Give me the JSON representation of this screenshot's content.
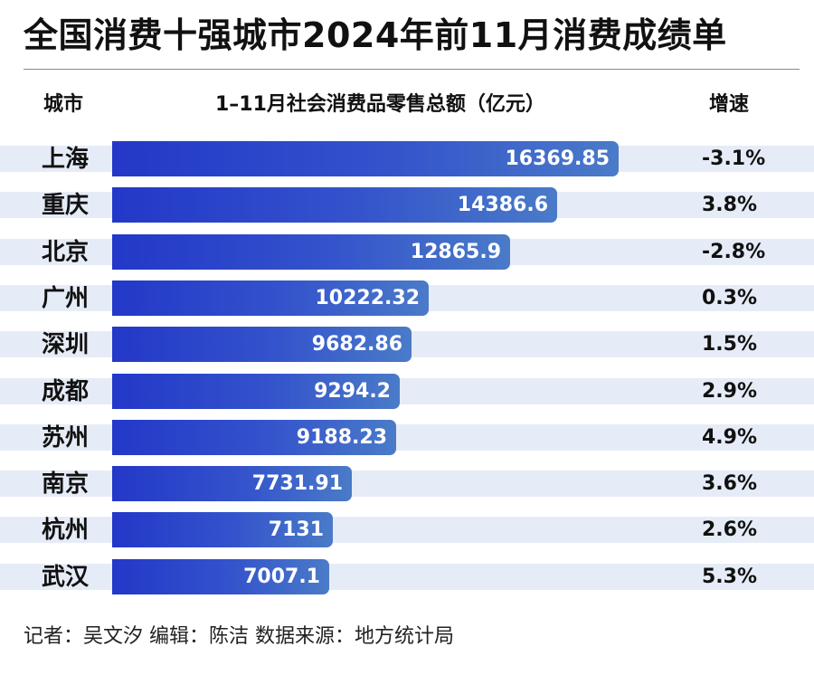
{
  "title": "全国消费十强城市2024年前11月消费成绩单",
  "footer": "记者：吴文汐  编辑：陈洁  数据来源：地方统计局",
  "chart_data": {
    "type": "bar",
    "orientation": "horizontal",
    "headers": {
      "city": "城市",
      "value": "1–11月社会消费品零售总额（亿元）",
      "growth": "增速"
    },
    "categories": [
      "上海",
      "重庆",
      "北京",
      "广州",
      "深圳",
      "成都",
      "苏州",
      "南京",
      "杭州",
      "武汉"
    ],
    "values": [
      16369.85,
      14386.6,
      12865.9,
      10222.32,
      9682.86,
      9294.2,
      9188.23,
      7731.91,
      7131,
      7007.1
    ],
    "value_labels": [
      "16369.85",
      "14386.6",
      "12865.9",
      "10222.32",
      "9682.86",
      "9294.2",
      "9188.23",
      "7731.91",
      "7131",
      "7007.1"
    ],
    "growth": [
      "-3.1%",
      "3.8%",
      "-2.8%",
      "0.3%",
      "1.5%",
      "2.9%",
      "4.9%",
      "3.6%",
      "2.6%",
      "5.3%"
    ],
    "colors": {
      "bar_start": "#2338c8",
      "bar_end": "#4a7bc8",
      "row_band": "#e6ecf7",
      "label": "#ffffff"
    }
  }
}
